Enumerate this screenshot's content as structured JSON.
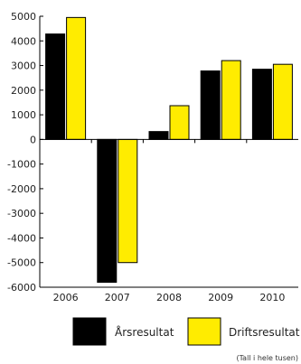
{
  "chart_data": {
    "type": "bar",
    "categories": [
      "2006",
      "2007",
      "2008",
      "2009",
      "2010"
    ],
    "series": [
      {
        "name": "Årsresultat",
        "color": "#000000",
        "values": [
          4280,
          -5800,
          320,
          2780,
          2850
        ]
      },
      {
        "name": "Driftsresultat",
        "color": "#ffec00",
        "values": [
          4950,
          -5000,
          1370,
          3200,
          3050
        ]
      }
    ],
    "ylim": [
      -6000,
      5000
    ],
    "yticks": [
      "5000",
      "4000",
      "3000",
      "2000",
      "1000",
      "0",
      "-1000",
      "-2000",
      "-3000",
      "-4000",
      "-5000",
      "-6000"
    ],
    "grid": false,
    "legend_position": "bottom",
    "note": "(Tall i hele tusen)"
  }
}
